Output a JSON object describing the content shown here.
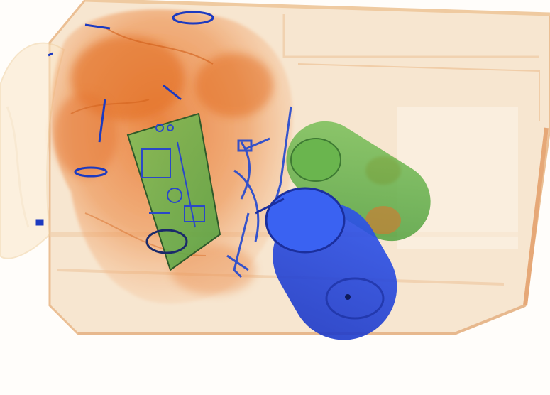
{
  "scene": {
    "kind": "x-ray baggage scan",
    "background": "#fffdfa",
    "palette": {
      "organic_orange": "#e06a1e",
      "organic_light": "#f7c79a",
      "container_beige": "#f3d7b4",
      "mixed_green": "#5fb04a",
      "metal_blue": "#1f3fd8",
      "dark_outline": "#1a2a6a"
    },
    "objects": [
      {
        "name": "plastic-tub",
        "material": "plastic"
      },
      {
        "name": "clothing-bundle",
        "material": "organic"
      },
      {
        "name": "cloth-left",
        "material": "organic"
      },
      {
        "name": "circuit-board",
        "material": "mixed"
      },
      {
        "name": "green-flask",
        "material": "mixed"
      },
      {
        "name": "blue-thermos",
        "material": "metal"
      },
      {
        "name": "cable-cluster",
        "material": "metal"
      }
    ]
  }
}
